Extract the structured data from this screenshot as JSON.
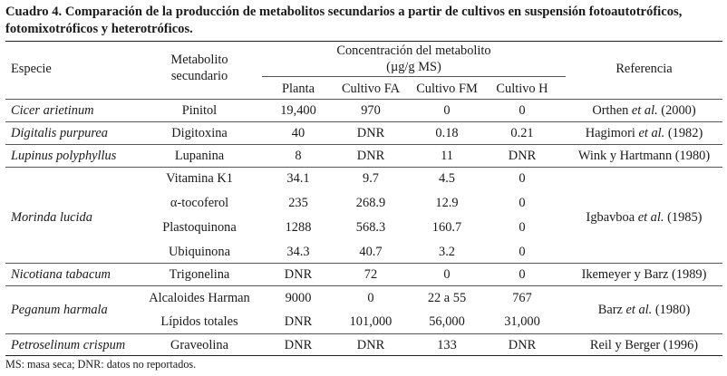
{
  "caption": {
    "line1": "Cuadro 4. Comparación de la producción de metabolitos secundarios a partir de cultivos en suspensión fotoautotróficos,",
    "line2": "fotomixotróficos y heterotróficos."
  },
  "headers": {
    "especie": "Especie",
    "metabolito": [
      "Metabolito",
      "secundario"
    ],
    "concentracion": [
      "Concentración del metabolito",
      "(µg/g MS)"
    ],
    "referencia": "Referencia",
    "sub": [
      "Planta",
      "Cultivo FA",
      "Cultivo FM",
      "Cultivo H"
    ]
  },
  "species": {
    "cicer": "Cicer arietinum",
    "digitalis": "Digitalis purpurea",
    "lupinus": "Lupinus polyphyllus",
    "morinda": "Morinda lucida",
    "nicotiana": "Nicotiana tabacum",
    "peganum": "Peganum harmala",
    "petroselinum": "Petroselinum crispum"
  },
  "rows": [
    {
      "metabolito": "Pinitol",
      "planta": "19,400",
      "fa": "970",
      "fm": "0",
      "h": "0"
    },
    {
      "metabolito": "Digitoxina",
      "planta": "40",
      "fa": "DNR",
      "fm": "0.18",
      "h": "0.21"
    },
    {
      "metabolito": "Lupanina",
      "planta": "8",
      "fa": "DNR",
      "fm": "11",
      "h": "DNR"
    },
    {
      "metabolito": "Vitamina K1",
      "planta": "34.1",
      "fa": "9.7",
      "fm": "4.5",
      "h": "0"
    },
    {
      "metabolito": "α-tocoferol",
      "planta": "235",
      "fa": "268.9",
      "fm": "12.9",
      "h": "0"
    },
    {
      "metabolito": "Plastoquinona",
      "planta": "1288",
      "fa": "568.3",
      "fm": "160.7",
      "h": "0"
    },
    {
      "metabolito": "Ubiquinona",
      "planta": "34.3",
      "fa": "40.7",
      "fm": "3.2",
      "h": "0"
    },
    {
      "metabolito": "Trigonelina",
      "planta": "DNR",
      "fa": "72",
      "fm": "0",
      "h": "0"
    },
    {
      "metabolito": "Alcaloides Harman",
      "planta": "9000",
      "fa": "0",
      "fm": "22 a 55",
      "h": "767"
    },
    {
      "metabolito": "Lípidos totales",
      "planta": "DNR",
      "fa": "101,000",
      "fm": "56,000",
      "h": "31,000"
    },
    {
      "metabolito": "Graveolina",
      "planta": "DNR",
      "fa": "DNR",
      "fm": "133",
      "h": "DNR"
    }
  ],
  "refs": {
    "orthen": {
      "a": "Orthen ",
      "etal": "et al.",
      "b": " (2000)"
    },
    "hagimori": {
      "a": "Hagimori ",
      "etal": "et al.",
      "b": " (1982)"
    },
    "wink": "Wink y Hartmann (1980)",
    "igbavboa": {
      "a": "Igbavboa ",
      "etal": "et al.",
      "b": " (1985)"
    },
    "ikemeyer": "Ikemeyer y Barz (1989)",
    "barz": {
      "a": "Barz ",
      "etal": "et al.",
      "b": " (1980)"
    },
    "reil": "Reil y Berger (1996)"
  },
  "footnote": "MS: masa seca; DNR: datos no reportados."
}
